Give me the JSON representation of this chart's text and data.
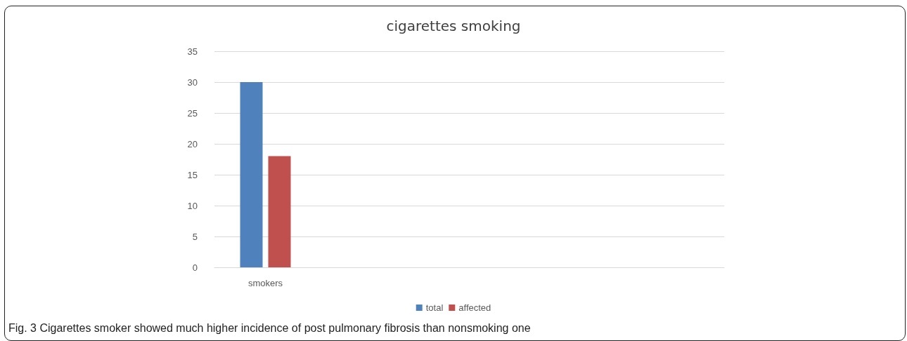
{
  "chart_data": {
    "type": "bar",
    "title": "cigarettes smoking",
    "categories": [
      "smokers",
      null,
      null,
      null,
      null
    ],
    "series": [
      {
        "name": "total",
        "color": "#4f81bd",
        "values": [
          30,
          null,
          null,
          null,
          null
        ]
      },
      {
        "name": "affected",
        "color": "#c0504d",
        "values": [
          18,
          null,
          null,
          null,
          null
        ]
      }
    ],
    "ylim": [
      0,
      35
    ],
    "yticks": [
      0,
      5,
      10,
      15,
      20,
      25,
      30,
      35
    ],
    "grid": "y",
    "legend": "bottom",
    "annotations": [
      "Fig. 3 Cigarettes smoker showed much higher incidence of post pulmonary fibrosis than nonsmoking one"
    ]
  }
}
